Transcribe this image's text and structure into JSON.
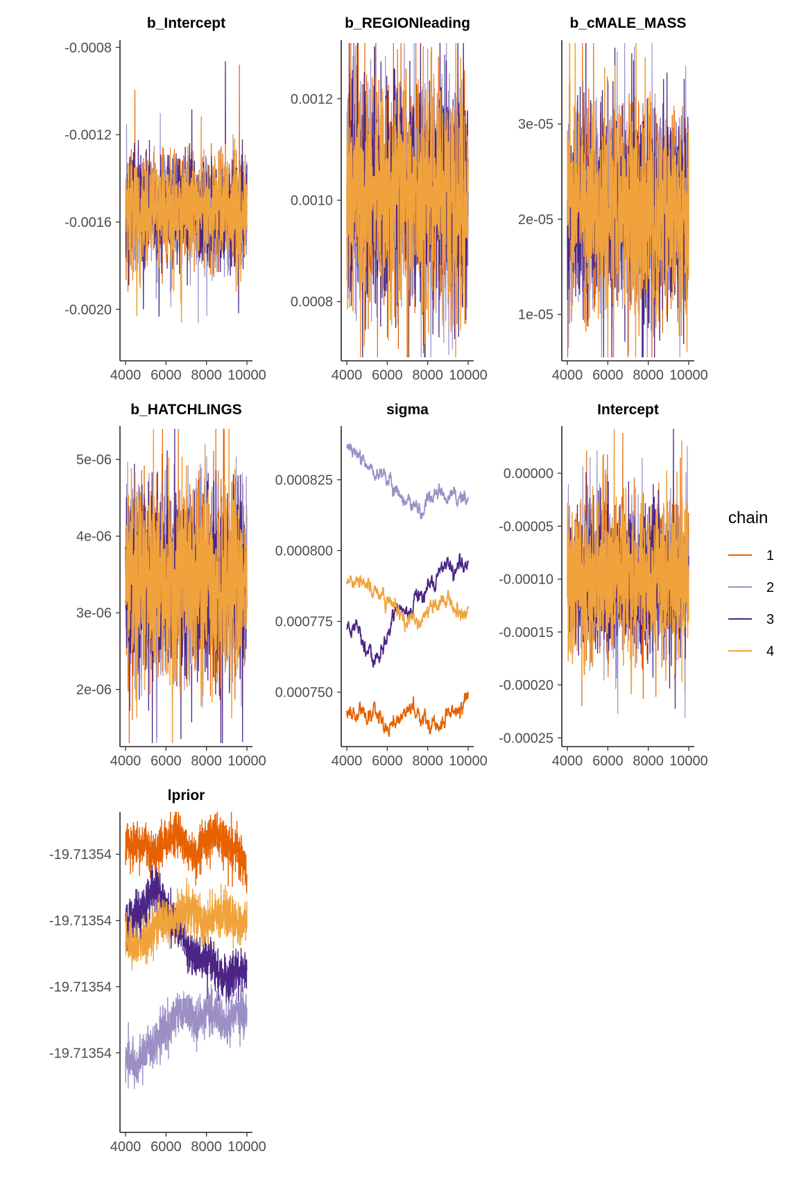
{
  "chart_data": {
    "type": "line",
    "x_range": [
      4000,
      10000
    ],
    "x_ticks": [
      4000,
      6000,
      8000,
      10000
    ],
    "x_tick_labels": [
      "4000",
      "6000",
      "8000",
      "10000"
    ],
    "legend": {
      "title": "chain",
      "placement": "right",
      "entries": [
        {
          "label": "1",
          "color": "#e66101"
        },
        {
          "label": "2",
          "color": "#9b8fc4"
        },
        {
          "label": "3",
          "color": "#4b2585"
        },
        {
          "label": "4",
          "color": "#f0a23c"
        }
      ]
    },
    "panels": [
      {
        "title": "b_Intercept",
        "kind": "noisy",
        "ylim": [
          -0.00222,
          -0.00078
        ],
        "y_ticks": [
          -0.0008,
          -0.0012,
          -0.0016,
          -0.002
        ],
        "y_tick_labels": [
          "-0.0008",
          "-0.0012",
          "-0.0016",
          "-0.0020"
        ],
        "center": -0.00155,
        "spread": 0.00011
      },
      {
        "title": "b_REGIONleading",
        "kind": "noisy",
        "ylim": [
          0.00069,
          0.00131
        ],
        "y_ticks": [
          0.0008,
          0.001,
          0.0012
        ],
        "y_tick_labels": [
          "0.0008",
          "0.0010",
          "0.0012"
        ],
        "center": 0.00101,
        "spread": 9.5e-05
      },
      {
        "title": "b_cMALE_MASS",
        "kind": "noisy",
        "ylim": [
          5.5e-06,
          3.85e-05
        ],
        "y_ticks": [
          1e-05,
          2e-05,
          3e-05
        ],
        "y_tick_labels": [
          "1e-05",
          "2e-05",
          "3e-05"
        ],
        "center": 2.08e-05,
        "spread": 4.5e-06
      },
      {
        "title": "b_HATCHLINGS",
        "kind": "noisy",
        "ylim": [
          1.3e-06,
          5.4e-06
        ],
        "y_ticks": [
          2e-06,
          3e-06,
          4e-06,
          5e-06
        ],
        "y_tick_labels": [
          "2e-06",
          "3e-06",
          "4e-06",
          "5e-06"
        ],
        "center": 3.4e-06,
        "spread": 5.7e-07
      },
      {
        "title": "sigma",
        "kind": "smooth",
        "ylim": [
          0.000732,
          0.000843
        ],
        "y_ticks": [
          0.00075,
          0.000775,
          0.0008,
          0.000825
        ],
        "y_tick_labels": [
          "0.000750",
          "0.000775",
          "0.000800",
          "0.000825"
        ],
        "series": [
          {
            "chain": "1",
            "points": [
              [
                4000,
                0.000742
              ],
              [
                4500,
                0.000743
              ],
              [
                5000,
                0.000741
              ],
              [
                5500,
                0.000744
              ],
              [
                6000,
                0.000737
              ],
              [
                6500,
                0.000741
              ],
              [
                7000,
                0.000745
              ],
              [
                7500,
                0.000742
              ],
              [
                8000,
                0.000739
              ],
              [
                8500,
                0.000736
              ],
              [
                9000,
                0.000742
              ],
              [
                9500,
                0.000744
              ],
              [
                10000,
                0.000749
              ]
            ]
          },
          {
            "chain": "2",
            "points": [
              [
                4000,
                0.000838
              ],
              [
                4500,
                0.000834
              ],
              [
                5000,
                0.00083
              ],
              [
                5500,
                0.000828
              ],
              [
                6000,
                0.000825
              ],
              [
                6500,
                0.00082
              ],
              [
                7000,
                0.000818
              ],
              [
                7500,
                0.000813
              ],
              [
                8000,
                0.000818
              ],
              [
                8500,
                0.00082
              ],
              [
                9000,
                0.000817
              ],
              [
                9500,
                0.000819
              ],
              [
                10000,
                0.000818
              ]
            ]
          },
          {
            "chain": "3",
            "points": [
              [
                4000,
                0.000771
              ],
              [
                4500,
                0.000774
              ],
              [
                5000,
                0.000765
              ],
              [
                5500,
                0.000762
              ],
              [
                6000,
                0.000771
              ],
              [
                6500,
                0.000779
              ],
              [
                7000,
                0.000777
              ],
              [
                7500,
                0.000782
              ],
              [
                8000,
                0.000788
              ],
              [
                8500,
                0.000792
              ],
              [
                9000,
                0.000797
              ],
              [
                9500,
                0.000794
              ],
              [
                10000,
                0.000795
              ]
            ]
          },
          {
            "chain": "4",
            "points": [
              [
                4000,
                0.00079
              ],
              [
                4500,
                0.00079
              ],
              [
                5000,
                0.000788
              ],
              [
                5500,
                0.000785
              ],
              [
                6000,
                0.000783
              ],
              [
                6500,
                0.00078
              ],
              [
                7000,
                0.000776
              ],
              [
                7500,
                0.000775
              ],
              [
                8000,
                0.000778
              ],
              [
                8500,
                0.00078
              ],
              [
                9000,
                0.000784
              ],
              [
                9500,
                0.000778
              ],
              [
                10000,
                0.000777
              ]
            ]
          }
        ]
      },
      {
        "title": "Intercept",
        "kind": "noisy",
        "ylim": [
          -0.000255,
          4.2e-05
        ],
        "y_ticks": [
          0,
          -5e-05,
          -0.0001,
          -0.00015,
          -0.0002,
          -0.00025
        ],
        "y_tick_labels": [
          "0.00000",
          "-0.00005",
          "-0.00010",
          "-0.00015",
          "-0.00020",
          "-0.00025"
        ],
        "center": -0.0001,
        "spread": 3.2e-05
      },
      {
        "title": "lprior",
        "kind": "smooth",
        "ylim": [
          -4.3,
          0.45
        ],
        "y_ticks": [
          -0.15,
          -1.15,
          -2.15,
          -3.15
        ],
        "y_tick_labels": [
          "-19.71354",
          "-19.71354",
          "-19.71354",
          "-19.71354"
        ],
        "series": [
          {
            "chain": "1",
            "points": [
              [
                4000,
                0.05
              ],
              [
                4500,
                -0.05
              ],
              [
                5000,
                0.0
              ],
              [
                5500,
                -0.2
              ],
              [
                6000,
                0.1
              ],
              [
                6500,
                0.2
              ],
              [
                7000,
                -0.1
              ],
              [
                7500,
                -0.2
              ],
              [
                8000,
                0.1
              ],
              [
                8500,
                0.2
              ],
              [
                9000,
                0.0
              ],
              [
                9500,
                -0.1
              ],
              [
                10000,
                -0.4
              ]
            ]
          },
          {
            "chain": "3",
            "points": [
              [
                4000,
                -1.15
              ],
              [
                4500,
                -1.05
              ],
              [
                5000,
                -0.9
              ],
              [
                5500,
                -0.6
              ],
              [
                6000,
                -1.0
              ],
              [
                6500,
                -1.2
              ],
              [
                7000,
                -1.5
              ],
              [
                7500,
                -1.8
              ],
              [
                8000,
                -1.7
              ],
              [
                8500,
                -1.9
              ],
              [
                9000,
                -2.1
              ],
              [
                9500,
                -1.9
              ],
              [
                10000,
                -1.95
              ]
            ]
          },
          {
            "chain": "4",
            "points": [
              [
                4000,
                -1.5
              ],
              [
                4500,
                -1.55
              ],
              [
                5000,
                -1.4
              ],
              [
                5500,
                -1.25
              ],
              [
                6000,
                -1.15
              ],
              [
                6500,
                -1.1
              ],
              [
                7000,
                -1.0
              ],
              [
                7500,
                -1.05
              ],
              [
                8000,
                -1.2
              ],
              [
                8500,
                -1.1
              ],
              [
                9000,
                -1.0
              ],
              [
                9500,
                -1.2
              ],
              [
                10000,
                -1.1
              ]
            ]
          },
          {
            "chain": "2",
            "points": [
              [
                4000,
                -3.2
              ],
              [
                4500,
                -3.3
              ],
              [
                5000,
                -3.1
              ],
              [
                5500,
                -3.0
              ],
              [
                6000,
                -2.8
              ],
              [
                6500,
                -2.6
              ],
              [
                7000,
                -2.5
              ],
              [
                7500,
                -2.7
              ],
              [
                8000,
                -2.5
              ],
              [
                8500,
                -2.6
              ],
              [
                9000,
                -2.7
              ],
              [
                9500,
                -2.5
              ],
              [
                10000,
                -2.55
              ]
            ]
          }
        ]
      }
    ]
  }
}
